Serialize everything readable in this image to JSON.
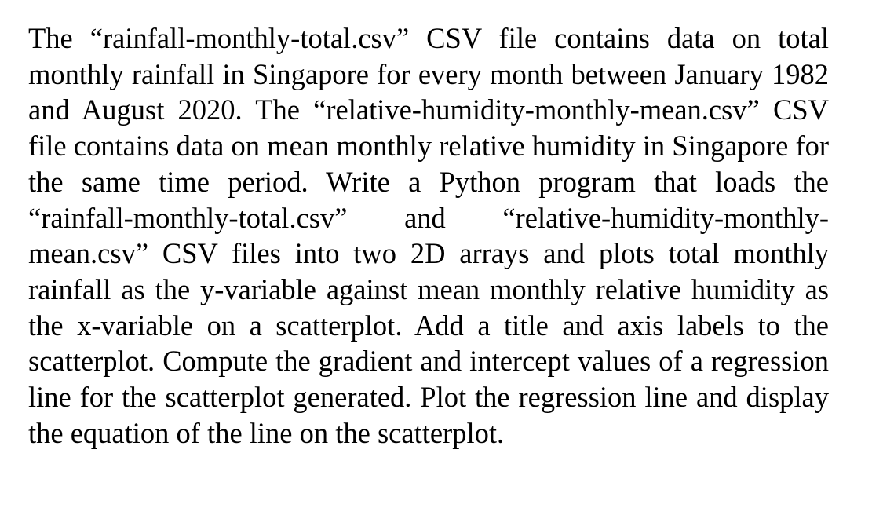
{
  "document": {
    "paragraph": "The “rainfall-monthly-total.csv” CSV file contains data on total monthly rainfall in Singapore for every month between January 1982 and August 2020. The “relative-humidity-monthly-mean.csv” CSV file contains data on mean monthly relative humidity in Singapore for the same time period. Write a Python program that loads the “rainfall-monthly-total.csv” and “relative-humidity-monthly-mean.csv” CSV files into two 2D arrays and plots total monthly rainfall as the y-variable against mean monthly relative humidity as the x-variable on a scatterplot. Add a title and axis labels to the scatterplot. Compute the gradient and intercept values of a regression line for the scatterplot generated. Plot the regression line and display the equation of the line on the scatterplot."
  },
  "colors": {
    "text": "#000000",
    "background": "#ffffff"
  }
}
